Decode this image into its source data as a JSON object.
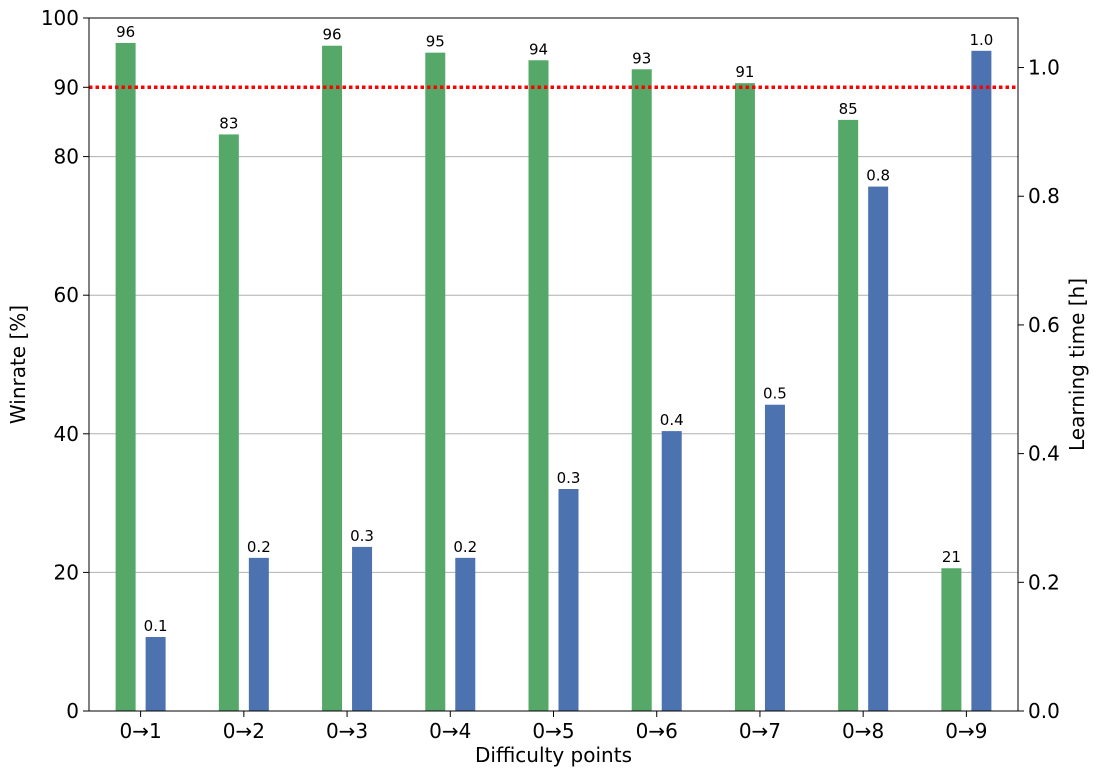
{
  "chart_data": {
    "type": "bar",
    "categories": [
      "0→1",
      "0→2",
      "0→3",
      "0→4",
      "0→5",
      "0→6",
      "0→7",
      "0→8",
      "0→9"
    ],
    "xlabel": "Difficulty points",
    "ylabel_left": "Winrate [%]",
    "ylabel_right": "Learning time [h]",
    "ylim_left": [
      0,
      100
    ],
    "ylim_right": [
      0,
      1.077
    ],
    "yticks_left": [
      "0",
      "20",
      "40",
      "60",
      "80",
      "90",
      "100"
    ],
    "yticks_left_values": [
      0,
      20,
      40,
      60,
      80,
      90,
      100
    ],
    "yticks_right": [
      "0.0",
      "0.2",
      "0.4",
      "0.6",
      "0.8",
      "1.0"
    ],
    "yticks_right_values": [
      0,
      0.2,
      0.4,
      0.6,
      0.8,
      1.0
    ],
    "grid": "horizontal at left-axis ticks 20, 40, 60, 80",
    "reference_line": {
      "axis": "left",
      "value": 90,
      "style": "dotted",
      "color": "#ff0000"
    },
    "series": [
      {
        "axis": "left",
        "color": "#55a868",
        "values": [
          96.4,
          83.2,
          96.0,
          95.0,
          93.9,
          92.6,
          90.6,
          85.3,
          20.6
        ],
        "labels": [
          "96",
          "83",
          "96",
          "95",
          "94",
          "93",
          "91",
          "85",
          "21"
        ]
      },
      {
        "axis": "right",
        "color": "#4c72b0",
        "values": [
          0.115,
          0.238,
          0.255,
          0.238,
          0.345,
          0.435,
          0.476,
          0.815,
          1.026
        ],
        "labels": [
          "0.1",
          "0.2",
          "0.3",
          "0.2",
          "0.3",
          "0.4",
          "0.5",
          "0.8",
          "1.0"
        ]
      }
    ]
  }
}
